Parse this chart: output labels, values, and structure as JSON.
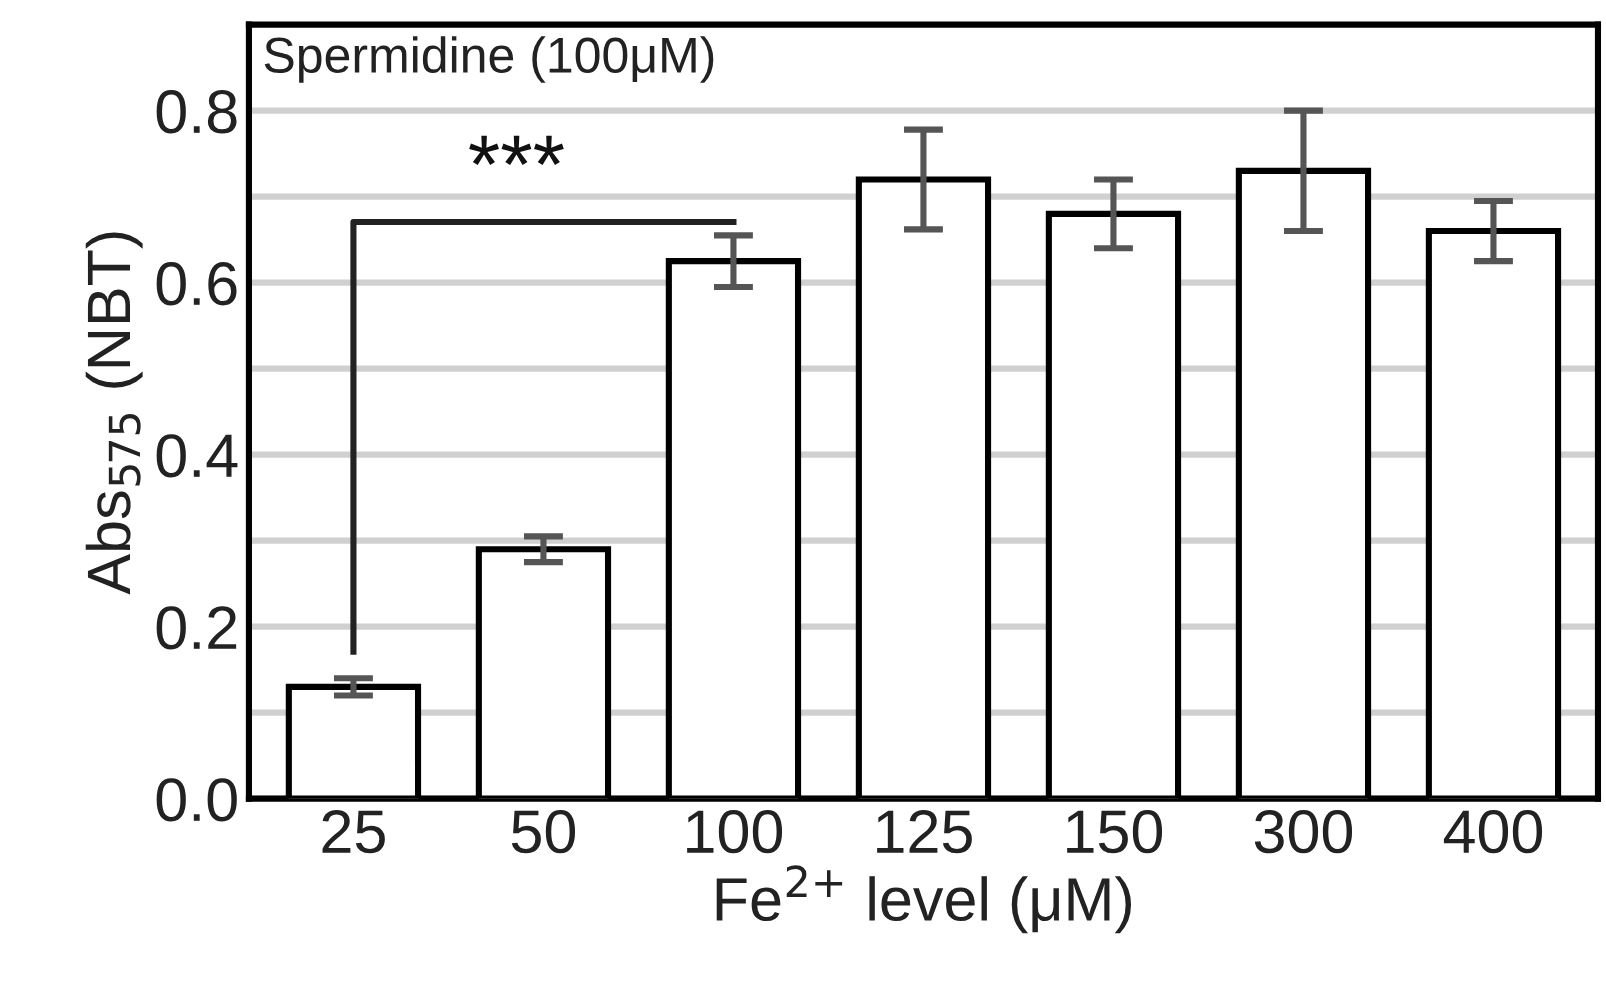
{
  "chart_data": {
    "type": "bar",
    "title": "Spermidine (100μM)",
    "xlabel": "Fe$^{2+}$ level (μM)",
    "ylabel": "Abs$_{575}$ (NBT)",
    "categories": [
      "25",
      "50",
      "100",
      "125",
      "150",
      "300",
      "400"
    ],
    "series": [
      {
        "color": "#ffffff",
        "values": [
          0.13,
          0.29,
          0.625,
          0.72,
          0.68,
          0.73,
          0.66
        ],
        "errors": [
          0.01,
          0.015,
          0.03,
          0.058,
          0.04,
          0.07,
          0.035
        ]
      }
    ],
    "ylim": [
      0,
      0.9
    ],
    "yticks": [
      {
        "value": 0,
        "label": "0.0"
      },
      {
        "value": 0.1,
        "label": null
      },
      {
        "value": 0.2,
        "label": "0.2"
      },
      {
        "value": 0.3,
        "label": null
      },
      {
        "value": 0.4,
        "label": "0.4"
      },
      {
        "value": 0.5,
        "label": null
      },
      {
        "value": 0.6,
        "label": "0.6"
      },
      {
        "value": 0.7,
        "label": null
      },
      {
        "value": 0.8,
        "label": "0.8"
      }
    ],
    "grid": "y",
    "legend": false,
    "annotations": [
      "***"
    ]
  }
}
